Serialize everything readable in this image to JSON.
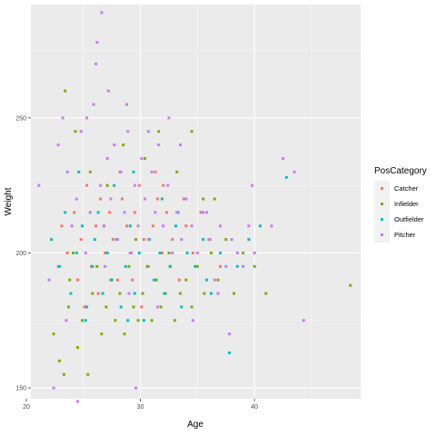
{
  "chart_data": {
    "type": "scatter",
    "xlabel": "Age",
    "ylabel": "Weight",
    "xlim": [
      20.4,
      49.3
    ],
    "ylim": [
      146,
      292
    ],
    "x_ticks": [
      20,
      30,
      40
    ],
    "y_ticks": [
      150,
      200,
      250
    ],
    "grid": true,
    "legend_position": "right",
    "legend_title": "PosCategory",
    "series": [
      {
        "name": "Catcher",
        "color": "#F8766D",
        "points": [
          [
            23.1,
            210
          ],
          [
            23.6,
            200
          ],
          [
            24.2,
            215
          ],
          [
            24.8,
            205
          ],
          [
            25.3,
            225
          ],
          [
            25.7,
            195
          ],
          [
            26.1,
            210
          ],
          [
            26.5,
            220
          ],
          [
            26.9,
            200
          ],
          [
            27.3,
            215
          ],
          [
            27.6,
            205
          ],
          [
            28.0,
            190
          ],
          [
            28.4,
            220
          ],
          [
            28.8,
            210
          ],
          [
            29.1,
            200
          ],
          [
            29.5,
            215
          ],
          [
            29.9,
            225
          ],
          [
            30.3,
            205
          ],
          [
            30.7,
            195
          ],
          [
            31.1,
            210
          ],
          [
            31.5,
            220
          ],
          [
            31.9,
            200
          ],
          [
            32.3,
            215
          ],
          [
            32.8,
            205
          ],
          [
            33.4,
            190
          ],
          [
            34.0,
            210
          ],
          [
            34.6,
            200
          ],
          [
            35.3,
            215
          ],
          [
            36.1,
            205
          ],
          [
            37.0,
            195
          ],
          [
            24.5,
            190
          ],
          [
            26.3,
            185
          ],
          [
            28.2,
            230
          ],
          [
            30.1,
            180
          ],
          [
            32.0,
            225
          ],
          [
            22.8,
            195
          ],
          [
            25.1,
            180
          ],
          [
            29.3,
            190
          ],
          [
            31.3,
            230
          ],
          [
            33.8,
            220
          ]
        ]
      },
      {
        "name": "Infielder",
        "color": "#7CAE00",
        "points": [
          [
            22.4,
            170
          ],
          [
            22.9,
            160
          ],
          [
            23.3,
            155
          ],
          [
            23.7,
            180
          ],
          [
            24.1,
            200
          ],
          [
            24.5,
            165
          ],
          [
            24.9,
            175
          ],
          [
            25.4,
            155
          ],
          [
            25.8,
            185
          ],
          [
            26.2,
            195
          ],
          [
            26.6,
            170
          ],
          [
            27.0,
            180
          ],
          [
            27.4,
            190
          ],
          [
            27.8,
            175
          ],
          [
            28.2,
            185
          ],
          [
            28.6,
            170
          ],
          [
            29.0,
            195
          ],
          [
            29.4,
            180
          ],
          [
            29.8,
            175
          ],
          [
            30.2,
            185
          ],
          [
            30.6,
            195
          ],
          [
            31.0,
            175
          ],
          [
            31.4,
            190
          ],
          [
            31.8,
            180
          ],
          [
            32.2,
            185
          ],
          [
            32.6,
            195
          ],
          [
            33.0,
            175
          ],
          [
            33.5,
            185
          ],
          [
            34.0,
            190
          ],
          [
            34.5,
            180
          ],
          [
            35.0,
            195
          ],
          [
            35.6,
            185
          ],
          [
            36.2,
            200
          ],
          [
            36.8,
            190
          ],
          [
            37.5,
            205
          ],
          [
            38.2,
            185
          ],
          [
            39.0,
            200
          ],
          [
            40.0,
            195
          ],
          [
            41.0,
            185
          ],
          [
            48.4,
            188
          ],
          [
            23.4,
            260
          ],
          [
            24.3,
            245
          ],
          [
            25.6,
            230
          ],
          [
            27.1,
            225
          ],
          [
            28.5,
            240
          ],
          [
            30.4,
            235
          ],
          [
            31.6,
            245
          ],
          [
            33.2,
            230
          ],
          [
            34.5,
            245
          ],
          [
            35.5,
            220
          ],
          [
            23.8,
            190
          ],
          [
            26.8,
            210
          ],
          [
            29.6,
            205
          ],
          [
            32.5,
            200
          ],
          [
            36.5,
            220
          ]
        ]
      },
      {
        "name": "Outfielder",
        "color": "#00BFC4",
        "points": [
          [
            22.2,
            205
          ],
          [
            22.9,
            195
          ],
          [
            23.4,
            215
          ],
          [
            23.9,
            185
          ],
          [
            24.4,
            200
          ],
          [
            24.9,
            210
          ],
          [
            25.3,
            180
          ],
          [
            25.8,
            195
          ],
          [
            26.3,
            215
          ],
          [
            26.7,
            185
          ],
          [
            27.1,
            200
          ],
          [
            27.5,
            190
          ],
          [
            27.9,
            205
          ],
          [
            28.3,
            180
          ],
          [
            28.7,
            195
          ],
          [
            29.1,
            210
          ],
          [
            29.5,
            185
          ],
          [
            29.9,
            200
          ],
          [
            30.3,
            175
          ],
          [
            30.8,
            205
          ],
          [
            31.2,
            190
          ],
          [
            31.7,
            200
          ],
          [
            32.1,
            185
          ],
          [
            32.6,
            195
          ],
          [
            33.1,
            210
          ],
          [
            33.6,
            180
          ],
          [
            34.1,
            200
          ],
          [
            34.8,
            195
          ],
          [
            35.5,
            205
          ],
          [
            36.2,
            185
          ],
          [
            37.0,
            200
          ],
          [
            37.8,
            163
          ],
          [
            38.5,
            195
          ],
          [
            39.5,
            205
          ],
          [
            40.5,
            210
          ],
          [
            42.8,
            228
          ],
          [
            24.6,
            230
          ],
          [
            27.7,
            225
          ],
          [
            29.4,
            230
          ],
          [
            31.9,
            220
          ],
          [
            25.2,
            175
          ],
          [
            28.9,
            175
          ],
          [
            33.3,
            215
          ],
          [
            35.8,
            190
          ],
          [
            26.0,
            205
          ]
        ]
      },
      {
        "name": "Pitcher",
        "color": "#C77CFF",
        "points": [
          [
            21.1,
            225
          ],
          [
            22.0,
            190
          ],
          [
            22.4,
            150
          ],
          [
            22.8,
            240
          ],
          [
            23.2,
            250
          ],
          [
            23.6,
            230
          ],
          [
            24.0,
            210
          ],
          [
            24.4,
            220
          ],
          [
            24.8,
            245
          ],
          [
            25.2,
            200
          ],
          [
            25.6,
            215
          ],
          [
            25.9,
            255
          ],
          [
            26.2,
            278
          ],
          [
            26.5,
            225
          ],
          [
            26.8,
            210
          ],
          [
            27.1,
            235
          ],
          [
            27.4,
            220
          ],
          [
            27.7,
            240
          ],
          [
            28.0,
            205
          ],
          [
            28.3,
            230
          ],
          [
            28.6,
            215
          ],
          [
            28.9,
            245
          ],
          [
            29.2,
            200
          ],
          [
            29.5,
            225
          ],
          [
            29.8,
            210
          ],
          [
            30.1,
            235
          ],
          [
            30.4,
            220
          ],
          [
            30.7,
            205
          ],
          [
            31.0,
            230
          ],
          [
            31.3,
            215
          ],
          [
            31.6,
            240
          ],
          [
            32.0,
            210
          ],
          [
            32.4,
            225
          ],
          [
            32.8,
            200
          ],
          [
            33.2,
            215
          ],
          [
            33.6,
            205
          ],
          [
            34.0,
            220
          ],
          [
            34.5,
            210
          ],
          [
            35.0,
            200
          ],
          [
            35.5,
            215
          ],
          [
            36.0,
            205
          ],
          [
            36.5,
            190
          ],
          [
            37.0,
            210
          ],
          [
            37.5,
            195
          ],
          [
            38.0,
            205
          ],
          [
            38.5,
            200
          ],
          [
            39.0,
            195
          ],
          [
            39.5,
            210
          ],
          [
            40.0,
            200
          ],
          [
            41.5,
            210
          ],
          [
            42.5,
            235
          ],
          [
            43.5,
            230
          ],
          [
            44.3,
            175
          ],
          [
            26.6,
            289
          ],
          [
            26.1,
            270
          ],
          [
            25.3,
            250
          ],
          [
            24.5,
            145
          ],
          [
            29.6,
            150
          ],
          [
            32.5,
            250
          ],
          [
            27.2,
            260
          ],
          [
            28.8,
            255
          ],
          [
            30.7,
            245
          ],
          [
            33.5,
            240
          ],
          [
            35.8,
            215
          ],
          [
            37.8,
            170
          ],
          [
            39.8,
            225
          ],
          [
            23.5,
            175
          ],
          [
            26.9,
            195
          ],
          [
            29.0,
            185
          ],
          [
            31.5,
            180
          ],
          [
            34.6,
            175
          ],
          [
            36.8,
            185
          ]
        ]
      }
    ]
  }
}
